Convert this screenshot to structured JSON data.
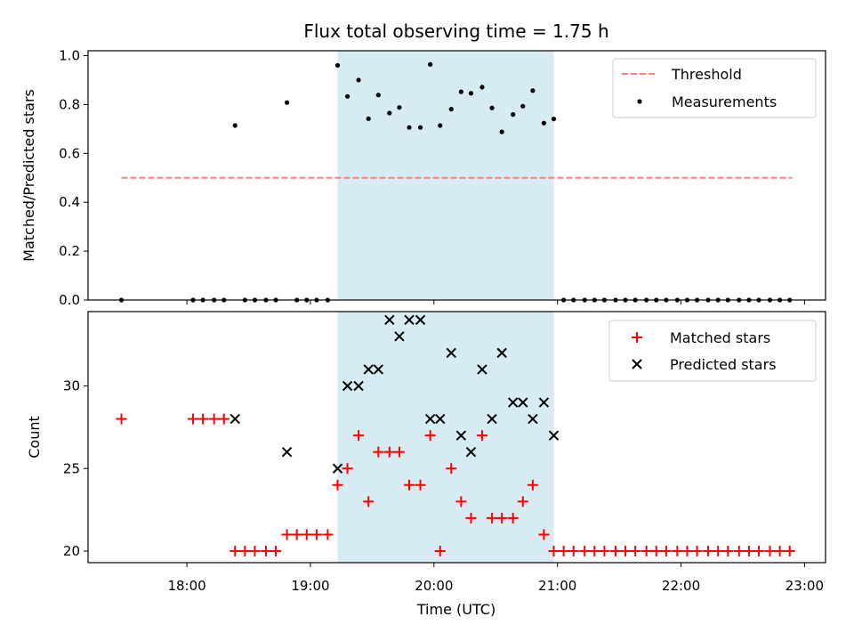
{
  "chart_data": {
    "type": "scatter",
    "title": "Flux total observing time = 1.75 h",
    "xlabel": "Time (UTC)",
    "x_ticks": [
      "18:00",
      "19:00",
      "20:00",
      "21:00",
      "22:00",
      "23:00"
    ],
    "x_tick_hours": [
      18,
      19,
      20,
      21,
      22,
      23
    ],
    "xlim_hours": [
      17.2,
      23.17
    ],
    "highlight_span_hours": [
      19.22,
      20.97
    ],
    "highlight_color": "#add8e6",
    "panels": [
      {
        "ylabel": "Matched/Predicted stars",
        "ylim": [
          0,
          1.02
        ],
        "y_ticks": [
          "0.0",
          "0.2",
          "0.4",
          "0.6",
          "0.8",
          "1.0"
        ],
        "y_tick_values": [
          0,
          0.2,
          0.4,
          0.6,
          0.8,
          1.0
        ],
        "legend_position": "upper right",
        "series": [
          {
            "name": "Threshold",
            "kind": "dashed-line",
            "color": "#ff7f7f",
            "x": [
              17.47,
              22.9
            ],
            "y": [
              0.5,
              0.5
            ]
          },
          {
            "name": "Measurements",
            "kind": "dot",
            "color": "#000000",
            "x": [
              17.47,
              18.05,
              18.13,
              18.22,
              18.3,
              18.39,
              18.47,
              18.55,
              18.64,
              18.72,
              18.81,
              18.89,
              18.97,
              19.05,
              19.14,
              19.22,
              19.3,
              19.39,
              19.47,
              19.55,
              19.64,
              19.72,
              19.8,
              19.89,
              19.97,
              20.05,
              20.14,
              20.22,
              20.3,
              20.39,
              20.47,
              20.55,
              20.64,
              20.72,
              20.8,
              20.89,
              20.97,
              21.05,
              21.13,
              21.22,
              21.3,
              21.38,
              21.47,
              21.55,
              21.63,
              21.72,
              21.8,
              21.88,
              21.97,
              22.05,
              22.13,
              22.22,
              22.3,
              22.38,
              22.47,
              22.55,
              22.63,
              22.72,
              22.8,
              22.88
            ],
            "y": [
              0,
              0,
              0,
              0,
              0,
              0.714,
              0,
              0,
              0,
              0,
              0.808,
              0,
              0,
              0,
              0,
              0.96,
              0.833,
              0.9,
              0.742,
              0.839,
              0.765,
              0.788,
              0.706,
              0.706,
              0.964,
              0.714,
              0.781,
              0.852,
              0.846,
              0.871,
              0.786,
              0.688,
              0.759,
              0.793,
              0.857,
              0.724,
              0.741,
              0,
              0,
              0,
              0,
              0,
              0,
              0,
              0,
              0,
              0,
              0,
              0,
              0,
              0,
              0,
              0,
              0,
              0,
              0,
              0,
              0,
              0,
              0
            ]
          }
        ]
      },
      {
        "ylabel": "Count",
        "ylim": [
          19.3,
          34.5
        ],
        "y_ticks": [
          "20",
          "25",
          "30"
        ],
        "y_tick_values": [
          20,
          25,
          30
        ],
        "legend_position": "upper right",
        "series": [
          {
            "name": "Matched stars",
            "kind": "plus",
            "color": "#ff0000",
            "x": [
              17.47,
              18.05,
              18.13,
              18.22,
              18.3,
              18.39,
              18.47,
              18.55,
              18.64,
              18.72,
              18.81,
              18.89,
              18.97,
              19.05,
              19.14,
              19.22,
              19.3,
              19.39,
              19.47,
              19.55,
              19.64,
              19.72,
              19.8,
              19.89,
              19.97,
              20.05,
              20.14,
              20.22,
              20.3,
              20.39,
              20.47,
              20.55,
              20.64,
              20.72,
              20.8,
              20.89,
              20.97,
              21.05,
              21.13,
              21.22,
              21.3,
              21.38,
              21.47,
              21.55,
              21.63,
              21.72,
              21.8,
              21.88,
              21.97,
              22.05,
              22.13,
              22.22,
              22.3,
              22.38,
              22.47,
              22.55,
              22.63,
              22.72,
              22.8,
              22.88
            ],
            "y": [
              28,
              28,
              28,
              28,
              28,
              20,
              20,
              20,
              20,
              20,
              21,
              21,
              21,
              21,
              21,
              24,
              25,
              27,
              23,
              26,
              26,
              26,
              24,
              24,
              27,
              20,
              25,
              23,
              22,
              27,
              22,
              22,
              22,
              23,
              24,
              21,
              20,
              20,
              20,
              20,
              20,
              20,
              20,
              20,
              20,
              20,
              20,
              20,
              20,
              20,
              20,
              20,
              20,
              20,
              20,
              20,
              20,
              20,
              20,
              20
            ]
          },
          {
            "name": "Predicted stars",
            "kind": "x",
            "color": "#000000",
            "x": [
              18.39,
              18.81,
              19.22,
              19.3,
              19.39,
              19.47,
              19.55,
              19.64,
              19.72,
              19.8,
              19.89,
              19.97,
              20.05,
              20.14,
              20.22,
              20.3,
              20.39,
              20.47,
              20.55,
              20.64,
              20.72,
              20.8,
              20.89,
              20.97
            ],
            "y": [
              28,
              26,
              25,
              30,
              30,
              31,
              31,
              34,
              33,
              34,
              34,
              28,
              28,
              32,
              27,
              26,
              31,
              28,
              32,
              29,
              29,
              28,
              29,
              27
            ]
          }
        ]
      }
    ]
  }
}
